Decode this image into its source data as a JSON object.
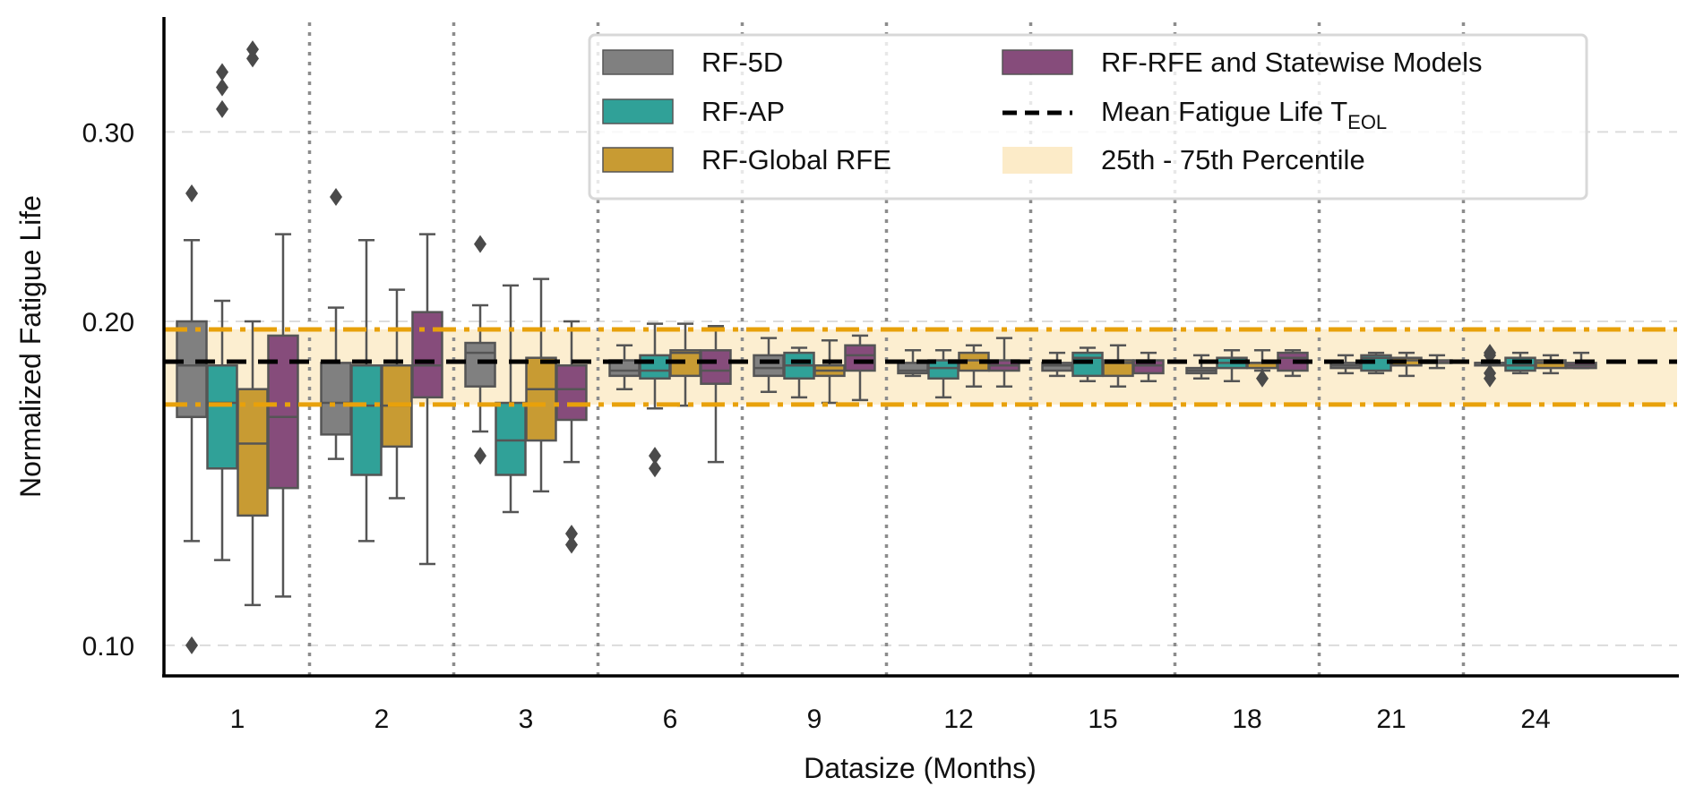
{
  "chart_data": {
    "type": "boxplot",
    "title": "",
    "xlabel": "Datasize (Months)",
    "ylabel": "Normalized Fatigue Life",
    "yscale": "log",
    "ylim": [
      0.093,
      0.375
    ],
    "yticks": [
      0.1,
      0.2,
      0.3
    ],
    "ytick_labels": [
      "0.10",
      "0.20",
      "0.30"
    ],
    "grid": "horizontal dashed light-gray at y ticks; dotted gray vertical separators between groups",
    "categories": [
      "1",
      "2",
      "3",
      "6",
      "9",
      "12",
      "15",
      "18",
      "21",
      "24"
    ],
    "reference": {
      "mean_fatigue_life": 0.1835,
      "band_low": 0.1674,
      "band_high": 0.1966,
      "mean_label": "Mean Fatigue Life T",
      "mean_label_sub": "EOL",
      "band_label": "25th - 75th Percentile"
    },
    "legend": {
      "placement": "top-center",
      "columns": 2,
      "entries": [
        {
          "label": "RF-5D",
          "kind": "patch",
          "color": "#808080"
        },
        {
          "label": "RF-AP",
          "kind": "patch",
          "color": "#30A198"
        },
        {
          "label": "RF-Global RFE",
          "kind": "patch",
          "color": "#C89B33"
        },
        {
          "label": "RF-RFE and Statewise Models",
          "kind": "patch",
          "color": "#864C7B"
        },
        {
          "label": "Mean Fatigue Life T",
          "sub": "EOL",
          "kind": "dashed-line",
          "color": "#000000"
        },
        {
          "label": "25th - 75th Percentile",
          "kind": "band",
          "color": "#FCEBC8"
        }
      ]
    },
    "series": [
      {
        "name": "RF-5D",
        "color": "#808080",
        "boxes": [
          {
            "whislo": 0.125,
            "q1": 0.163,
            "med": 0.182,
            "q3": 0.2,
            "whishi": 0.238,
            "fliers": [
              0.263,
              0.1
            ]
          },
          {
            "whislo": 0.149,
            "q1": 0.157,
            "med": 0.168,
            "q3": 0.183,
            "whishi": 0.206,
            "fliers": [
              0.261
            ]
          },
          {
            "whislo": 0.158,
            "q1": 0.174,
            "med": 0.187,
            "q3": 0.191,
            "whishi": 0.207,
            "fliers": [
              0.236,
              0.15
            ]
          },
          {
            "whislo": 0.173,
            "q1": 0.178,
            "med": 0.18,
            "q3": 0.184,
            "whishi": 0.19,
            "fliers": []
          },
          {
            "whislo": 0.172,
            "q1": 0.178,
            "med": 0.181,
            "q3": 0.186,
            "whishi": 0.193,
            "fliers": []
          },
          {
            "whislo": 0.178,
            "q1": 0.179,
            "med": 0.18,
            "q3": 0.183,
            "whishi": 0.188,
            "fliers": []
          },
          {
            "whislo": 0.178,
            "q1": 0.18,
            "med": 0.182,
            "q3": 0.183,
            "whishi": 0.187,
            "fliers": []
          },
          {
            "whislo": 0.177,
            "q1": 0.179,
            "med": 0.18,
            "q3": 0.181,
            "whishi": 0.186,
            "fliers": []
          },
          {
            "whislo": 0.179,
            "q1": 0.181,
            "med": 0.182,
            "q3": 0.183,
            "whishi": 0.186,
            "fliers": []
          },
          {
            "whislo": 0.182,
            "q1": 0.182,
            "med": 0.183,
            "q3": 0.183,
            "whishi": 0.184,
            "fliers": [
              0.187,
              0.186,
              0.179,
              0.177
            ]
          }
        ]
      },
      {
        "name": "RF-AP",
        "color": "#30A198",
        "boxes": [
          {
            "whislo": 0.12,
            "q1": 0.146,
            "med": 0.168,
            "q3": 0.182,
            "whishi": 0.209,
            "fliers": [
              0.341,
              0.33,
              0.315
            ]
          },
          {
            "whislo": 0.125,
            "q1": 0.144,
            "med": 0.167,
            "q3": 0.182,
            "whishi": 0.238,
            "fliers": []
          },
          {
            "whislo": 0.133,
            "q1": 0.144,
            "med": 0.155,
            "q3": 0.168,
            "whishi": 0.216,
            "fliers": []
          },
          {
            "whislo": 0.166,
            "q1": 0.177,
            "med": 0.18,
            "q3": 0.186,
            "whishi": 0.199,
            "fliers": [
              0.15,
              0.146
            ]
          },
          {
            "whislo": 0.17,
            "q1": 0.177,
            "med": 0.182,
            "q3": 0.187,
            "whishi": 0.189,
            "fliers": []
          },
          {
            "whislo": 0.17,
            "q1": 0.177,
            "med": 0.181,
            "q3": 0.184,
            "whishi": 0.188,
            "fliers": []
          },
          {
            "whislo": 0.176,
            "q1": 0.178,
            "med": 0.185,
            "q3": 0.187,
            "whishi": 0.189,
            "fliers": []
          },
          {
            "whislo": 0.176,
            "q1": 0.181,
            "med": 0.183,
            "q3": 0.185,
            "whishi": 0.188,
            "fliers": []
          },
          {
            "whislo": 0.179,
            "q1": 0.18,
            "med": 0.185,
            "q3": 0.186,
            "whishi": 0.187,
            "fliers": []
          },
          {
            "whislo": 0.179,
            "q1": 0.18,
            "med": 0.182,
            "q3": 0.185,
            "whishi": 0.187,
            "fliers": []
          }
        ]
      },
      {
        "name": "RF-Global RFE",
        "color": "#C89B33",
        "boxes": [
          {
            "whislo": 0.109,
            "q1": 0.132,
            "med": 0.154,
            "q3": 0.173,
            "whishi": 0.2,
            "fliers": [
              0.358,
              0.351
            ]
          },
          {
            "whislo": 0.137,
            "q1": 0.153,
            "med": 0.167,
            "q3": 0.182,
            "whishi": 0.214,
            "fliers": []
          },
          {
            "whislo": 0.139,
            "q1": 0.155,
            "med": 0.173,
            "q3": 0.185,
            "whishi": 0.219,
            "fliers": []
          },
          {
            "whislo": 0.167,
            "q1": 0.178,
            "med": 0.187,
            "q3": 0.188,
            "whishi": 0.199,
            "fliers": []
          },
          {
            "whislo": 0.168,
            "q1": 0.178,
            "med": 0.18,
            "q3": 0.182,
            "whishi": 0.192,
            "fliers": []
          },
          {
            "whislo": 0.174,
            "q1": 0.18,
            "med": 0.184,
            "q3": 0.187,
            "whishi": 0.19,
            "fliers": []
          },
          {
            "whislo": 0.174,
            "q1": 0.178,
            "med": 0.183,
            "q3": 0.184,
            "whishi": 0.19,
            "fliers": []
          },
          {
            "whislo": 0.18,
            "q1": 0.181,
            "med": 0.183,
            "q3": 0.183,
            "whishi": 0.188,
            "fliers": [
              0.177
            ]
          },
          {
            "whislo": 0.178,
            "q1": 0.182,
            "med": 0.184,
            "q3": 0.185,
            "whishi": 0.187,
            "fliers": []
          },
          {
            "whislo": 0.179,
            "q1": 0.181,
            "med": 0.183,
            "q3": 0.184,
            "whishi": 0.186,
            "fliers": []
          }
        ]
      },
      {
        "name": "RF-RFE and Statewise Models",
        "color": "#864C7B",
        "boxes": [
          {
            "whislo": 0.111,
            "q1": 0.14,
            "med": 0.163,
            "q3": 0.194,
            "whishi": 0.241,
            "fliers": []
          },
          {
            "whislo": 0.119,
            "q1": 0.17,
            "med": 0.182,
            "q3": 0.204,
            "whishi": 0.241,
            "fliers": []
          },
          {
            "whislo": 0.148,
            "q1": 0.162,
            "med": 0.173,
            "q3": 0.182,
            "whishi": 0.2,
            "fliers": [
              0.127,
              0.124
            ]
          },
          {
            "whislo": 0.148,
            "q1": 0.175,
            "med": 0.18,
            "q3": 0.188,
            "whishi": 0.198,
            "fliers": []
          },
          {
            "whislo": 0.169,
            "q1": 0.18,
            "med": 0.186,
            "q3": 0.19,
            "whishi": 0.194,
            "fliers": []
          },
          {
            "whislo": 0.174,
            "q1": 0.18,
            "med": 0.182,
            "q3": 0.184,
            "whishi": 0.193,
            "fliers": []
          },
          {
            "whislo": 0.176,
            "q1": 0.179,
            "med": 0.182,
            "q3": 0.184,
            "whishi": 0.187,
            "fliers": []
          },
          {
            "whislo": 0.178,
            "q1": 0.18,
            "med": 0.185,
            "q3": 0.187,
            "whishi": 0.188,
            "fliers": []
          },
          {
            "whislo": 0.181,
            "q1": 0.183,
            "med": 0.183,
            "q3": 0.184,
            "whishi": 0.186,
            "fliers": []
          },
          {
            "whislo": 0.181,
            "q1": 0.181,
            "med": 0.182,
            "q3": 0.183,
            "whishi": 0.187,
            "fliers": []
          }
        ]
      }
    ]
  }
}
